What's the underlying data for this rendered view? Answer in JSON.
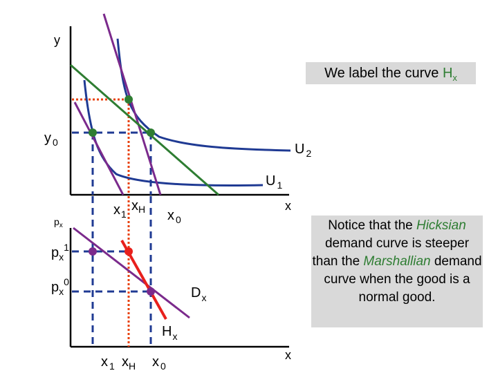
{
  "labels": {
    "y_axis": "y",
    "y0": "y",
    "y0_sub": "0",
    "u2": "U",
    "u2_sub": "2",
    "u1": "U",
    "u1_sub": "1",
    "x_axis_top": "x",
    "px": "p",
    "px_sub": "x",
    "x1_top": "x",
    "x1_top_sub": "1",
    "xh_top": "x",
    "xh_top_sub": "H",
    "x0_top": "x",
    "x0_top_sub": "0",
    "px1": "p",
    "px1_sub": "x",
    "px1_sup": "1",
    "px0": "p",
    "px0_sub": "x",
    "px0_sup": "0",
    "dx": "D",
    "dx_sub": "x",
    "hx": "H",
    "hx_sub": "x",
    "x1_bot": "x",
    "x1_bot_sub": "1",
    "xh_bot": "x",
    "xh_bot_sub": "H",
    "x0_bot": "x",
    "x0_bot_sub": "0",
    "x_axis_bottom": "x"
  },
  "callout_top": {
    "text": "We label the curve ",
    "highlight": "H",
    "highlight_sub": "x"
  },
  "callout_side": {
    "part1": "Notice that the ",
    "hicksian": "Hicksian",
    "part2": " demand curve is steeper than the ",
    "marshallian": "Marshallian",
    "part3": " demand curve when the good is a normal good."
  },
  "colors": {
    "axis": "#000000",
    "indifference": "#1f3a93",
    "budget_purple": "#7b2a8c",
    "budget_green": "#2e7d32",
    "dashed_blue": "#1f3a93",
    "dotted_red": "#e8400c",
    "hicksian": "#e8201c",
    "marshallian": "#7b2a8c",
    "dot_green": "#2e7d32",
    "dot_purple": "#7b2a8c",
    "dot_red": "#e8201c",
    "callout_bg": "#d9d9d9"
  }
}
